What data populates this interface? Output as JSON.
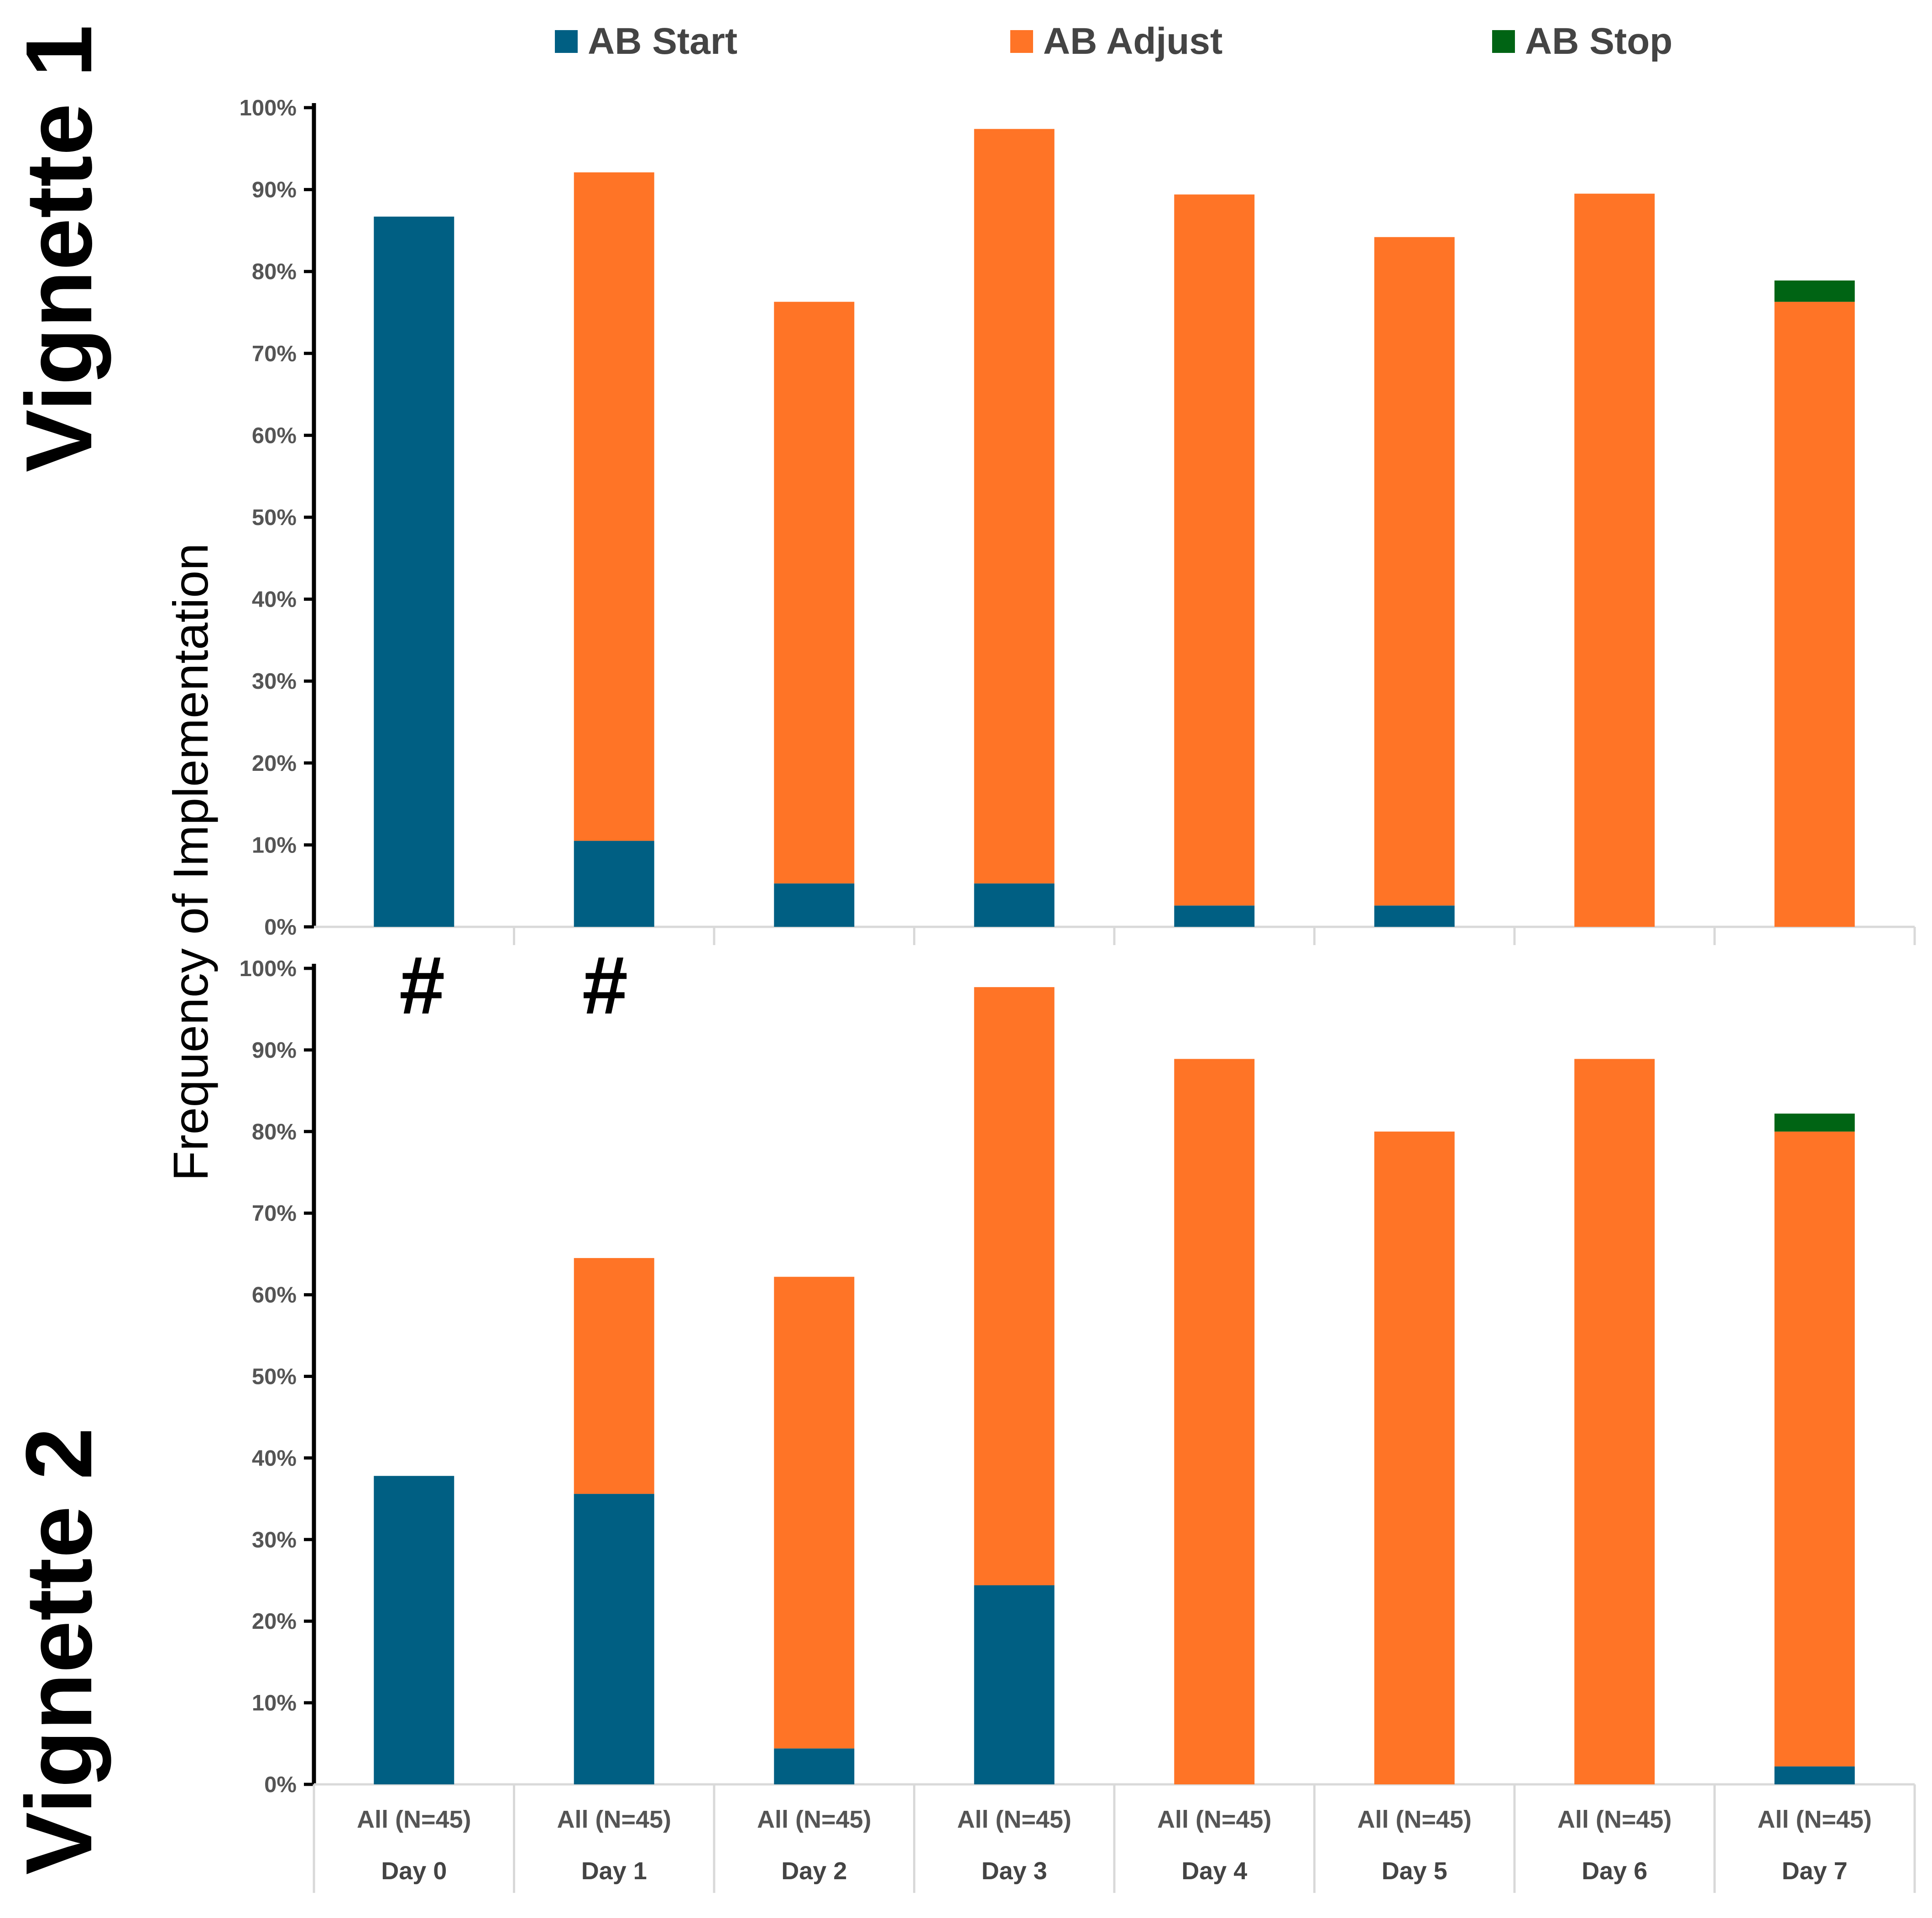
{
  "chart_data": {
    "type": "bar",
    "stacked": true,
    "ylabel": "Frequency of Implementation",
    "ylim": [
      0,
      100
    ],
    "yticks": [
      "0%",
      "10%",
      "20%",
      "30%",
      "40%",
      "50%",
      "60%",
      "70%",
      "80%",
      "90%",
      "100%"
    ],
    "category_group_label": "All (N=45)",
    "categories": [
      "Day 0",
      "Day 1",
      "Day 2",
      "Day 3",
      "Day 4",
      "Day 5",
      "Day 6",
      "Day 7"
    ],
    "legend": [
      {
        "name": "AB Start",
        "color": "#005F83"
      },
      {
        "name": "AB Adjust",
        "color": "#FF7426"
      },
      {
        "name": "AB Stop",
        "color": "#006414"
      }
    ],
    "annotation": "#",
    "panels": [
      {
        "title": "Vignette 1",
        "series": [
          {
            "name": "AB Start",
            "values": [
              86.7,
              10.5,
              5.3,
              5.3,
              2.6,
              2.6,
              0,
              0
            ]
          },
          {
            "name": "AB Adjust",
            "values": [
              0,
              81.6,
              71.0,
              92.1,
              86.8,
              81.6,
              89.5,
              76.3
            ]
          },
          {
            "name": "AB Stop",
            "values": [
              0,
              0,
              0,
              0,
              0,
              0,
              0,
              2.6
            ]
          }
        ]
      },
      {
        "title": "Vignette 2",
        "series": [
          {
            "name": "AB Start",
            "values": [
              37.8,
              35.6,
              4.4,
              24.4,
              0,
              0,
              0,
              2.2
            ]
          },
          {
            "name": "AB Adjust",
            "values": [
              0,
              28.9,
              57.8,
              73.3,
              88.9,
              80.0,
              88.9,
              77.8
            ]
          },
          {
            "name": "AB Stop",
            "values": [
              0,
              0,
              0,
              0,
              0,
              0,
              0,
              2.2
            ]
          }
        ]
      }
    ]
  }
}
